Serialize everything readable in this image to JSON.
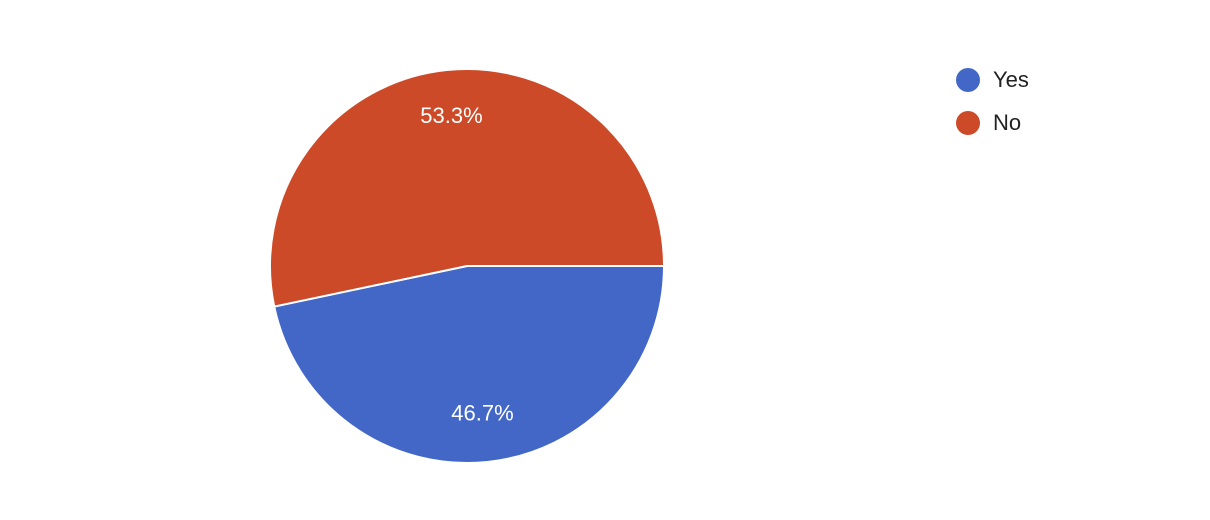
{
  "chart_data": {
    "type": "pie",
    "categories": [
      "Yes",
      "No"
    ],
    "values": [
      46.7,
      53.3
    ],
    "value_labels": [
      "46.7%",
      "53.3%"
    ],
    "colors": [
      "#4267c7",
      "#cc4a28"
    ],
    "legend": "right"
  }
}
